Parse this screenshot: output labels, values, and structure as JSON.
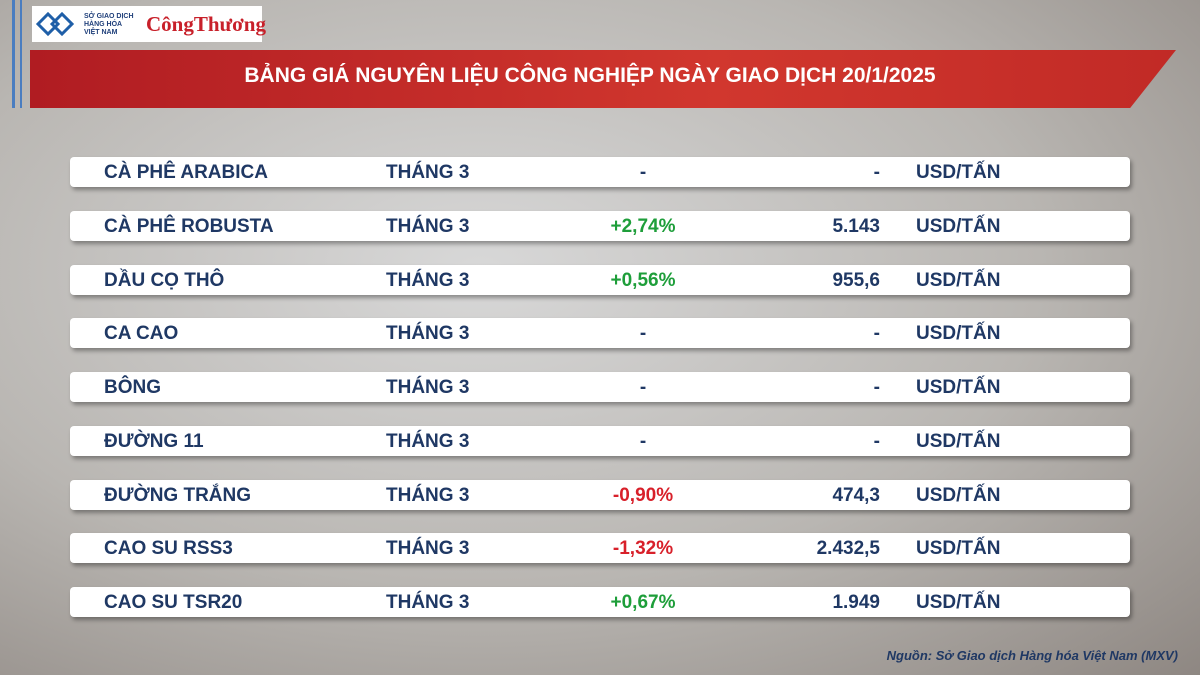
{
  "header": {
    "logo_lines": [
      "SỞ GIAO DỊCH",
      "HÀNG HÓA",
      "VIỆT NAM"
    ],
    "brand": "CôngThương",
    "title": "BẢNG GIÁ NGUYÊN LIỆU CÔNG NGHIỆP NGÀY GIAO DỊCH 20/1/2025"
  },
  "table": {
    "rows": [
      [
        "CÀ PHÊ ARABICA",
        "THÁNG 3",
        "-",
        "-",
        "USD/TẤN"
      ],
      [
        "CÀ PHÊ ROBUSTA",
        "THÁNG 3",
        "+2,74%",
        "5.143",
        "USD/TẤN"
      ],
      [
        "DẦU CỌ THÔ",
        "THÁNG 3",
        "+0,56%",
        "955,6",
        "USD/TẤN"
      ],
      [
        "CA CAO",
        "THÁNG 3",
        "-",
        "-",
        "USD/TẤN"
      ],
      [
        "BÔNG",
        "THÁNG 3",
        "-",
        "-",
        "USD/TẤN"
      ],
      [
        "ĐƯỜNG 11",
        "THÁNG 3",
        "-",
        "-",
        "USD/TẤN"
      ],
      [
        "ĐƯỜNG TRẮNG",
        "THÁNG 3",
        "-0,90%",
        "474,3",
        "USD/TẤN"
      ],
      [
        "CAO SU RSS3",
        "THÁNG 3",
        "-1,32%",
        "2.432,5",
        "USD/TẤN"
      ],
      [
        "CAO SU TSR20",
        "THÁNG 3",
        "+0,67%",
        "1.949",
        "USD/TẤN"
      ]
    ]
  },
  "footer": {
    "source": "Nguồn: Sở Giao dịch Hàng hóa Việt Nam (MXV)"
  }
}
